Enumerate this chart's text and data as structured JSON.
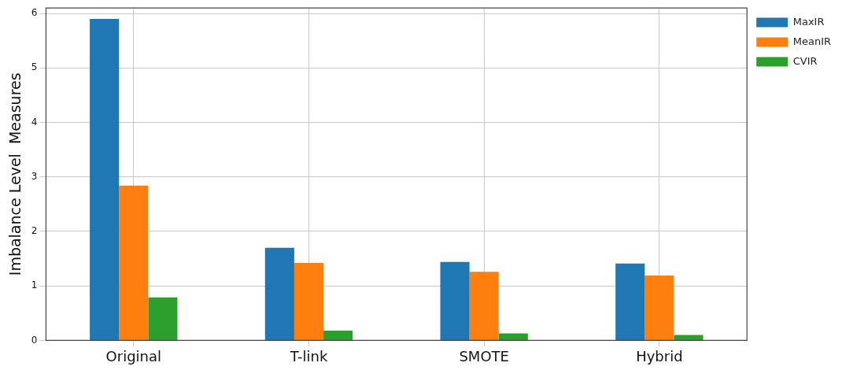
{
  "chart_data": {
    "type": "bar",
    "ylabel": "Imbalance Level  Measures",
    "categories": [
      "Original",
      "T-link",
      "SMOTE",
      "Hybrid"
    ],
    "series": [
      {
        "name": "MaxIR",
        "color": "#1f77b4",
        "values": [
          5.9,
          1.7,
          1.44,
          1.41
        ]
      },
      {
        "name": "MeanIR",
        "color": "#ff7f0e",
        "values": [
          2.84,
          1.42,
          1.26,
          1.19
        ]
      },
      {
        "name": "CVIR",
        "color": "#2ca02c",
        "values": [
          0.79,
          0.18,
          0.13,
          0.1
        ]
      }
    ],
    "ylim": [
      0,
      6.1
    ],
    "yticks": [
      0,
      1,
      2,
      3,
      4,
      5,
      6
    ],
    "grid": true,
    "legend": "right"
  }
}
